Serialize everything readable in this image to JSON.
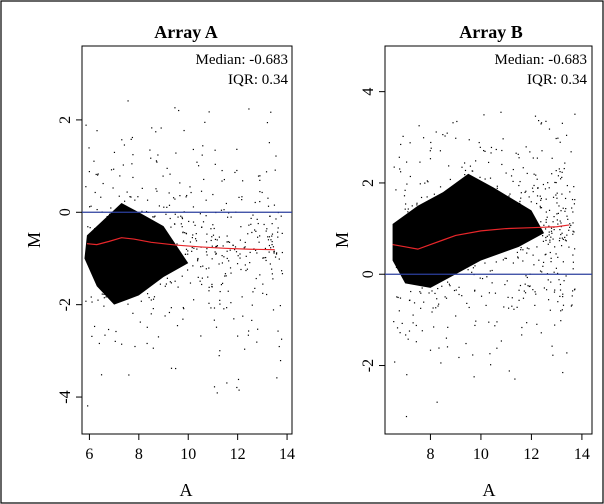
{
  "chart_data": [
    {
      "type": "scatter",
      "title": "Array A",
      "xlabel": "A",
      "ylabel": "M",
      "xlim": [
        5.7,
        14.2
      ],
      "ylim": [
        -4.8,
        3.6
      ],
      "xticks": [
        "6",
        "8",
        "10",
        "12",
        "14"
      ],
      "yticks": [
        "-4",
        "-2",
        "0",
        "2"
      ],
      "annotations": [
        "Median: -0.683",
        "IQR: 0.34"
      ],
      "reference_line": {
        "y": 0,
        "color": "#2b3f9e"
      },
      "loess": {
        "color": "#e8262a",
        "points": [
          [
            5.9,
            -0.68
          ],
          [
            6.3,
            -0.7
          ],
          [
            6.8,
            -0.63
          ],
          [
            7.3,
            -0.55
          ],
          [
            7.8,
            -0.58
          ],
          [
            8.5,
            -0.65
          ],
          [
            9.5,
            -0.71
          ],
          [
            10.5,
            -0.75
          ],
          [
            11.5,
            -0.78
          ],
          [
            12.5,
            -0.8
          ],
          [
            13.5,
            -0.81
          ]
        ]
      },
      "cloud": {
        "color": "#000000",
        "dense_region": [
          [
            5.8,
            -1.0
          ],
          [
            6.3,
            -1.6
          ],
          [
            7.0,
            -2.0
          ],
          [
            8.0,
            -1.8
          ],
          [
            9.0,
            -1.4
          ],
          [
            10.0,
            -1.1
          ],
          [
            9.0,
            -0.3
          ],
          [
            8.0,
            0.0
          ],
          [
            7.3,
            0.2
          ],
          [
            6.5,
            -0.2
          ],
          [
            5.9,
            -0.5
          ]
        ],
        "x_range": [
          5.8,
          13.8
        ],
        "y_range": [
          -4.6,
          2.5
        ]
      }
    },
    {
      "type": "scatter",
      "title": "Array B",
      "xlabel": "A",
      "ylabel": "M",
      "xlim": [
        6.2,
        14.4
      ],
      "ylim": [
        -3.5,
        5.0
      ],
      "xticks": [
        "8",
        "10",
        "12",
        "14"
      ],
      "yticks": [
        "-2",
        "0",
        "2",
        "4"
      ],
      "annotations": [
        "Median: -0.683",
        "IQR: 0.34"
      ],
      "reference_line": {
        "y": 0,
        "color": "#2b3f9e"
      },
      "loess": {
        "color": "#e8262a",
        "points": [
          [
            6.5,
            0.65
          ],
          [
            7.0,
            0.6
          ],
          [
            7.5,
            0.55
          ],
          [
            8.0,
            0.65
          ],
          [
            8.5,
            0.75
          ],
          [
            9.0,
            0.85
          ],
          [
            10.0,
            0.95
          ],
          [
            11.0,
            1.0
          ],
          [
            12.0,
            1.02
          ],
          [
            13.0,
            1.04
          ],
          [
            13.5,
            1.08
          ]
        ]
      },
      "cloud": {
        "color": "#000000",
        "dense_region": [
          [
            6.5,
            0.3
          ],
          [
            7.0,
            -0.2
          ],
          [
            8.0,
            -0.3
          ],
          [
            9.0,
            0.0
          ],
          [
            10.0,
            0.3
          ],
          [
            11.5,
            0.6
          ],
          [
            12.5,
            0.9
          ],
          [
            12.0,
            1.4
          ],
          [
            10.5,
            1.9
          ],
          [
            9.5,
            2.2
          ],
          [
            8.5,
            1.8
          ],
          [
            7.5,
            1.5
          ],
          [
            6.5,
            1.1
          ]
        ],
        "x_range": [
          6.5,
          13.7
        ],
        "y_range": [
          -3.3,
          3.6
        ]
      }
    }
  ]
}
